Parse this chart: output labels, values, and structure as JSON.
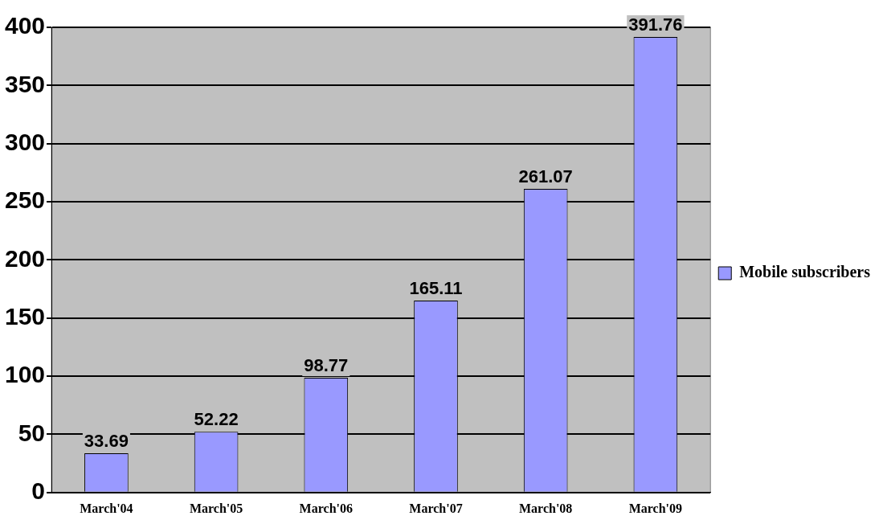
{
  "chart_data": {
    "type": "bar",
    "categories": [
      "March'04",
      "March'05",
      "March'06",
      "March'07",
      "March'08",
      "March'09"
    ],
    "series": [
      {
        "name": "Mobile subscribers",
        "color": "#9999ff",
        "values": [
          33.69,
          52.22,
          98.77,
          165.11,
          261.07,
          391.76
        ]
      }
    ],
    "ylim": [
      0,
      400
    ],
    "yticks": [
      0,
      50,
      100,
      150,
      200,
      250,
      300,
      350,
      400
    ],
    "grid": "y",
    "legend": "right",
    "data_labels": true
  }
}
